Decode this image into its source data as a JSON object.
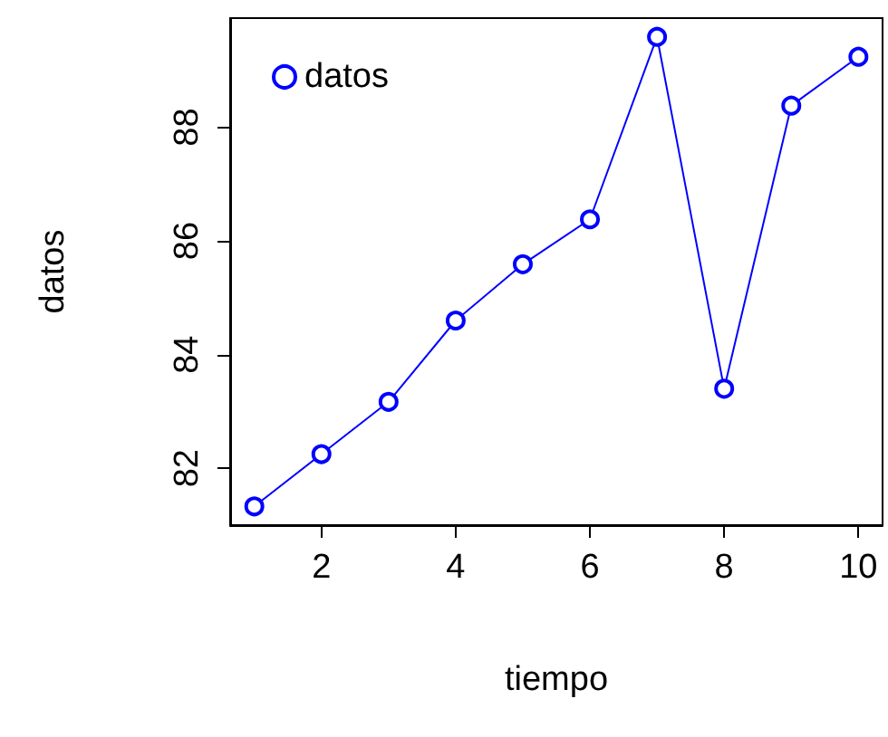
{
  "chart_data": {
    "type": "line",
    "xlabel": "tiempo",
    "ylabel": "datos",
    "x": [
      1,
      2,
      3,
      4,
      5,
      6,
      7,
      8,
      9,
      10
    ],
    "series": [
      {
        "name": "datos",
        "color": "#0000ff",
        "values": [
          81.33,
          82.25,
          83.17,
          84.6,
          85.59,
          86.38,
          89.59,
          83.4,
          88.38,
          89.24
        ]
      }
    ],
    "xlim": [
      0.64,
      10.36
    ],
    "xticks": [
      2,
      4,
      6,
      8,
      10
    ],
    "ylim": [
      81.0,
      89.92
    ],
    "yticks": [
      82,
      84,
      86,
      88
    ],
    "grid": false,
    "legend": "top left",
    "marker": "circle",
    "line_style": "solid"
  }
}
